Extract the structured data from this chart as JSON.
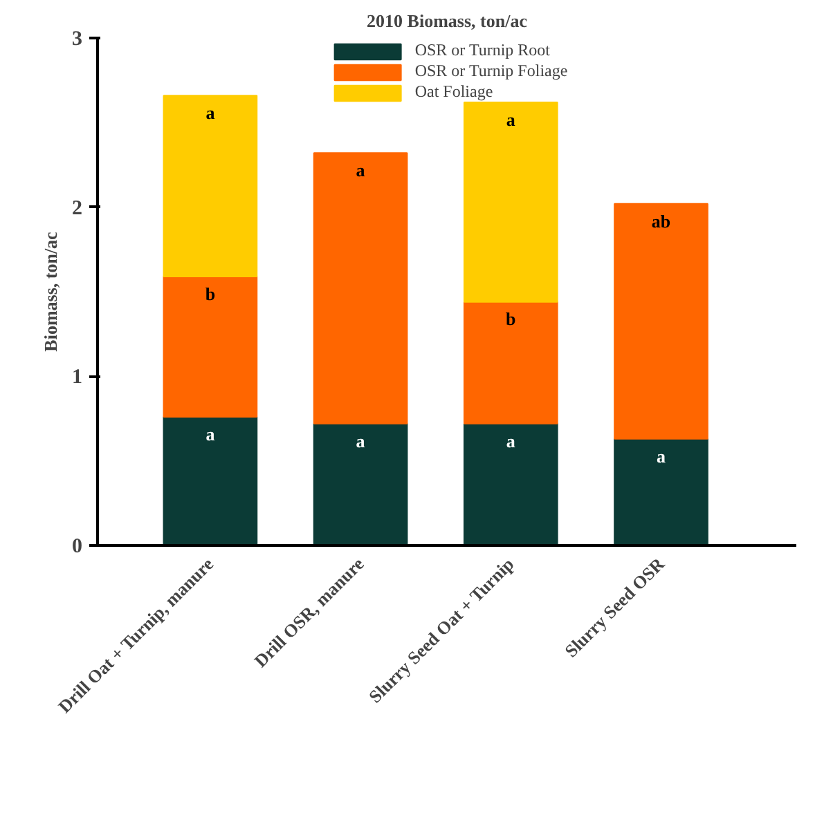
{
  "chart_data": {
    "type": "bar",
    "stacked": true,
    "title": "2010 Biomass, ton/ac",
    "ylabel": "Biomass, ton/ac",
    "categories": [
      "Drill Oat + Turnip, manure",
      "Drill OSR, manure",
      "Slurry Seed Oat + Turnip",
      "Slurry Seed OSR"
    ],
    "series": [
      {
        "name": "OSR or Turnip Root",
        "color": "#0b3b36",
        "values": [
          0.76,
          0.72,
          0.72,
          0.63
        ],
        "value_labels": [
          "a",
          "a",
          "a",
          "a"
        ]
      },
      {
        "name": "OSR or Turnip Foliage",
        "color": "#ff6600",
        "values": [
          0.83,
          1.6,
          0.72,
          1.39
        ],
        "value_labels": [
          "b",
          "a",
          "b",
          "ab"
        ]
      },
      {
        "name": "Oat Foliage",
        "color": "#ffcc00",
        "values": [
          1.07,
          null,
          1.18,
          null
        ],
        "value_labels": [
          "a",
          null,
          "a",
          null
        ]
      }
    ],
    "ylim": [
      0,
      3
    ],
    "yticks": [
      0,
      1,
      2,
      3
    ],
    "grid": false,
    "legend": "top"
  }
}
